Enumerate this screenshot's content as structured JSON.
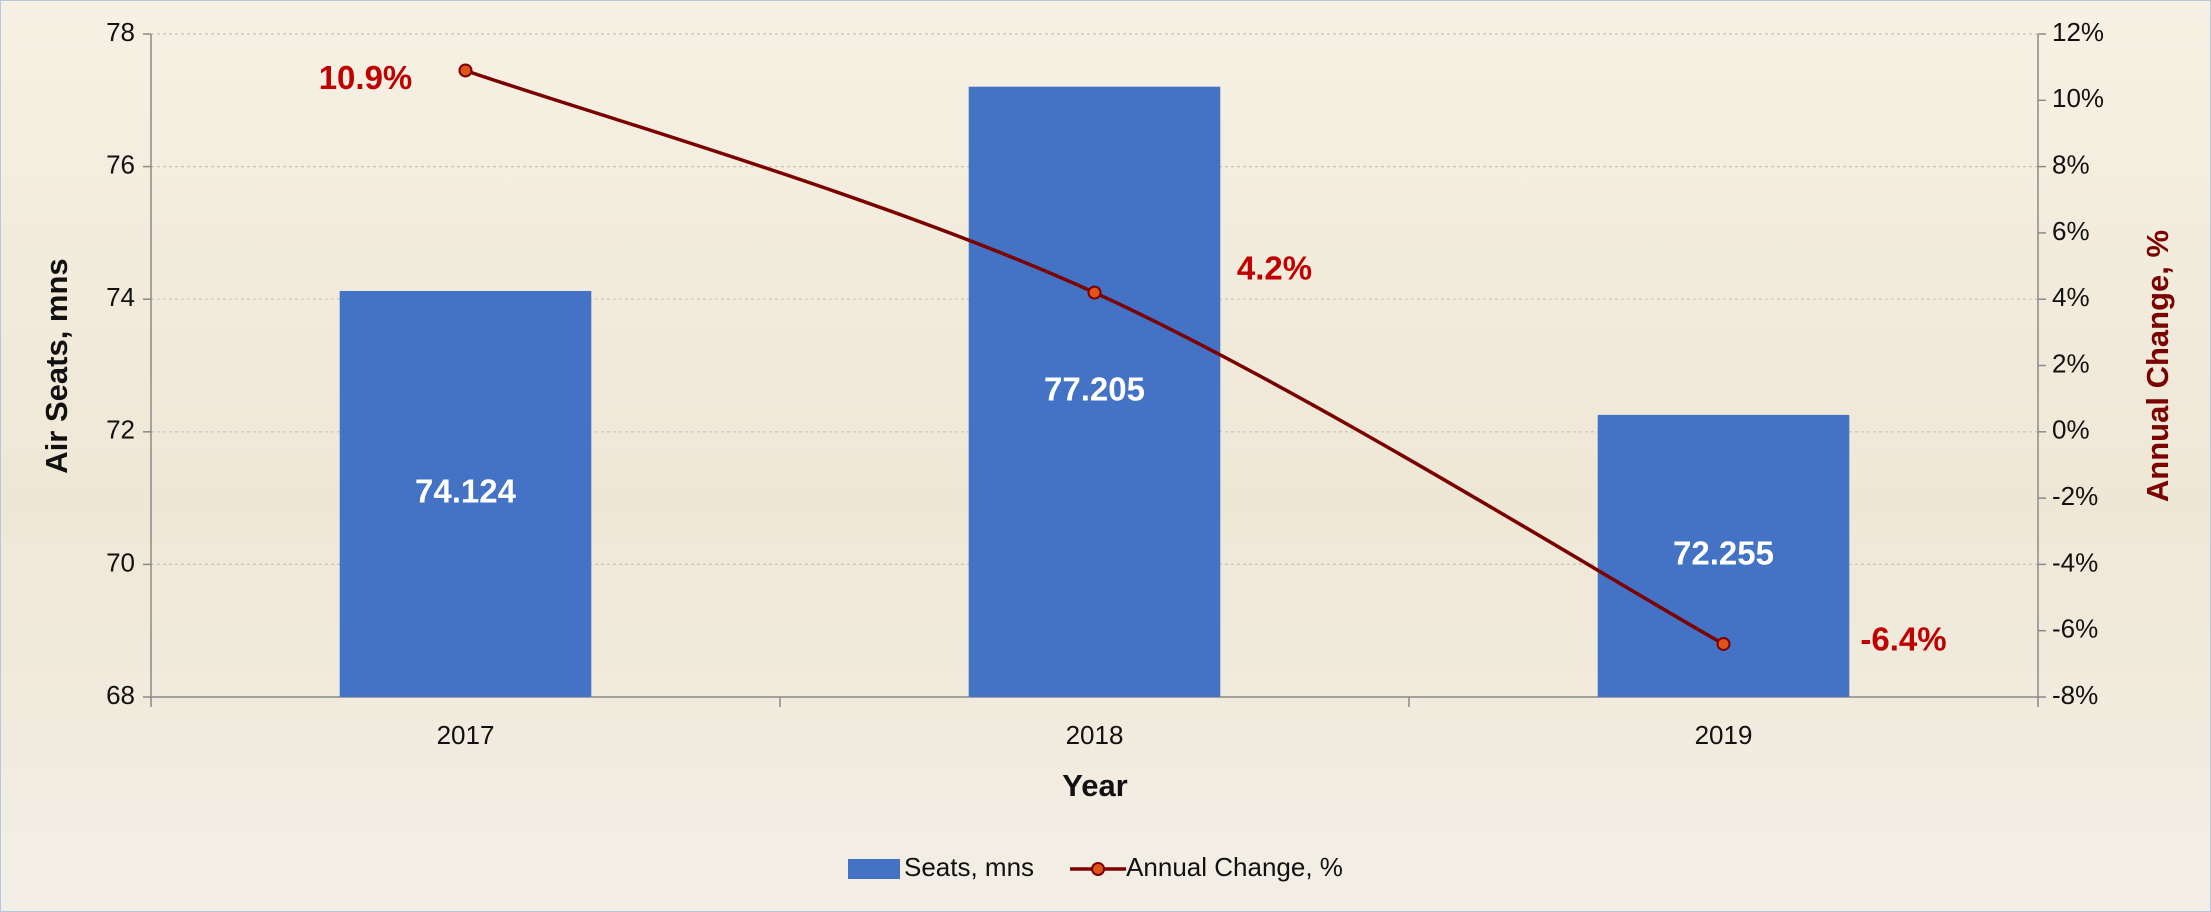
{
  "chart_data": {
    "type": "bar",
    "categories": [
      "2017",
      "2018",
      "2019"
    ],
    "series": [
      {
        "name": "Seats, mns",
        "color": "#4472c4",
        "values": [
          74.124,
          77.205,
          72.255
        ]
      },
      {
        "name": "Annual Change, %",
        "color": "#7b0000",
        "type": "line",
        "axis": "y2",
        "values": [
          10.9,
          4.2,
          -6.4
        ],
        "value_labels": [
          "10.9%",
          "4.2%",
          "-6.4%"
        ]
      }
    ],
    "xlabel": "Year",
    "ylabel": "Air Seats, mns",
    "y2label": "Annual Change, %",
    "ylim": [
      68,
      78
    ],
    "yticks": [
      68,
      70,
      72,
      74,
      76,
      78
    ],
    "y2lim": [
      -8,
      12
    ],
    "y2ticks": [
      {
        "value": -8,
        "label": "-8%"
      },
      {
        "value": -6,
        "label": "-6%"
      },
      {
        "value": -4,
        "label": "-4%"
      },
      {
        "value": -2,
        "label": "-2%"
      },
      {
        "value": 0,
        "label": "0%"
      },
      {
        "value": 2,
        "label": "2%"
      },
      {
        "value": 4,
        "label": "4%"
      },
      {
        "value": 6,
        "label": "6%"
      },
      {
        "value": 8,
        "label": "8%"
      },
      {
        "value": 10,
        "label": "10%"
      },
      {
        "value": 12,
        "label": "12%"
      }
    ],
    "grid": true,
    "legend": "bottom"
  }
}
